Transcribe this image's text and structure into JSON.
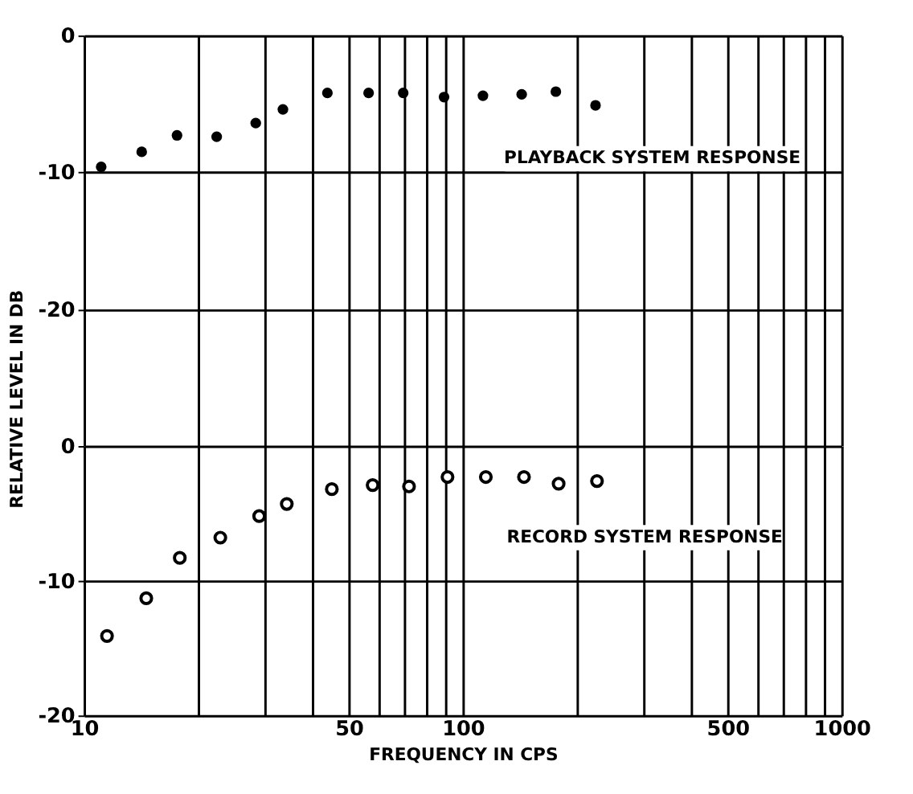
{
  "chart_data": [
    {
      "type": "scatter",
      "marker": "circle",
      "ylabel": "RELATIVE LEVEL IN DB",
      "annotations": [
        "PLAYBACK SYSTEM RESPONSE"
      ],
      "grid": true,
      "tick_labels": "y",
      "log": "x",
      "xlim": [
        10,
        1000
      ],
      "xticks": [
        10,
        {
          "value": 20,
          "label": null
        },
        {
          "value": 30,
          "label": null
        },
        {
          "value": 40,
          "label": null
        },
        50,
        {
          "value": 60,
          "label": null
        },
        {
          "value": 70,
          "label": null
        },
        {
          "value": 80,
          "label": null
        },
        {
          "value": 90,
          "label": null
        },
        100,
        {
          "value": 200,
          "label": null
        },
        {
          "value": 300,
          "label": null
        },
        {
          "value": 400,
          "label": null
        },
        500,
        {
          "value": 600,
          "label": null
        },
        {
          "value": 700,
          "label": null
        },
        {
          "value": 800,
          "label": null
        },
        {
          "value": 900,
          "label": null
        },
        1000
      ],
      "ylim": [
        -30,
        0
      ],
      "yticks": [
        0,
        -10,
        -20
      ],
      "series": [
        {
          "color": "#000000",
          "x": [
            11.1,
            14.2,
            17.6,
            22.4,
            28.4,
            33.5,
            43.9,
            56.4,
            69.6,
            89.2,
            113,
            143,
            176,
            224
          ],
          "values": [
            -9.6,
            -8.5,
            -7.3,
            -7.4,
            -6.4,
            -5.4,
            -4.2,
            -4.2,
            -4.2,
            -4.5,
            -4.4,
            -4.3,
            -4.1,
            -5.1
          ]
        }
      ]
    },
    {
      "type": "scatter",
      "marker": "circle",
      "xlabel": "FREQUENCY IN CPS",
      "annotations": [
        "RECORD SYSTEM RESPONSE"
      ],
      "grid": true,
      "log": "x",
      "xlim": [
        10,
        1000
      ],
      "xticks": [
        10,
        {
          "value": 20,
          "label": null
        },
        {
          "value": 30,
          "label": null
        },
        {
          "value": 40,
          "label": null
        },
        50,
        {
          "value": 60,
          "label": null
        },
        {
          "value": 70,
          "label": null
        },
        {
          "value": 80,
          "label": null
        },
        {
          "value": 90,
          "label": null
        },
        100,
        {
          "value": 200,
          "label": null
        },
        {
          "value": 300,
          "label": null
        },
        {
          "value": 400,
          "label": null
        },
        500,
        {
          "value": 600,
          "label": null
        },
        {
          "value": 700,
          "label": null
        },
        {
          "value": 800,
          "label": null
        },
        {
          "value": 900,
          "label": null
        },
        1000
      ],
      "ylim": [
        -20,
        0
      ],
      "yticks": [
        0,
        -10,
        -20
      ],
      "series": [
        {
          "color": "#000000",
          "x": [
            11.5,
            14.6,
            17.9,
            22.9,
            29.0,
            34.3,
            45.1,
            57.8,
            72.1,
            91.1,
            115,
            145,
            179,
            226
          ],
          "values": [
            -14.1,
            -11.3,
            -8.3,
            -6.8,
            -5.2,
            -4.3,
            -3.2,
            -2.9,
            -3.0,
            -2.3,
            -2.3,
            -2.3,
            -2.8,
            -2.6
          ]
        }
      ]
    }
  ]
}
